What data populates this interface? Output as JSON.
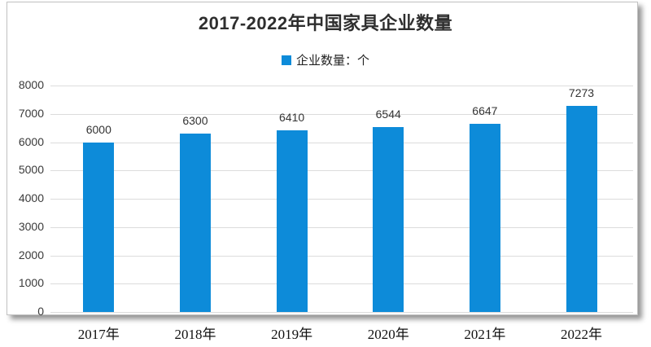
{
  "page": {
    "background": "#ffffff"
  },
  "card": {
    "border_color": "#c2c2c2",
    "background": "#ffffff"
  },
  "chart_data": {
    "type": "bar",
    "title": "2017-2022年中国家具企业数量",
    "series_name": "企业数量：个",
    "categories": [
      "2017年",
      "2018年",
      "2019年",
      "2020年",
      "2021年",
      "2022年"
    ],
    "values": [
      6000,
      6300,
      6410,
      6544,
      6647,
      7273
    ],
    "ylim": [
      0,
      8000
    ],
    "yticks": [
      0,
      1000,
      2000,
      3000,
      4000,
      5000,
      6000,
      7000,
      8000
    ],
    "grid": true,
    "legend_position": "top-center",
    "data_labels": true,
    "bar_color": "#0d8bd9",
    "gridline_color": "#dcdcdc",
    "title_color": "#2e2e2e",
    "label_color": "#333333"
  }
}
